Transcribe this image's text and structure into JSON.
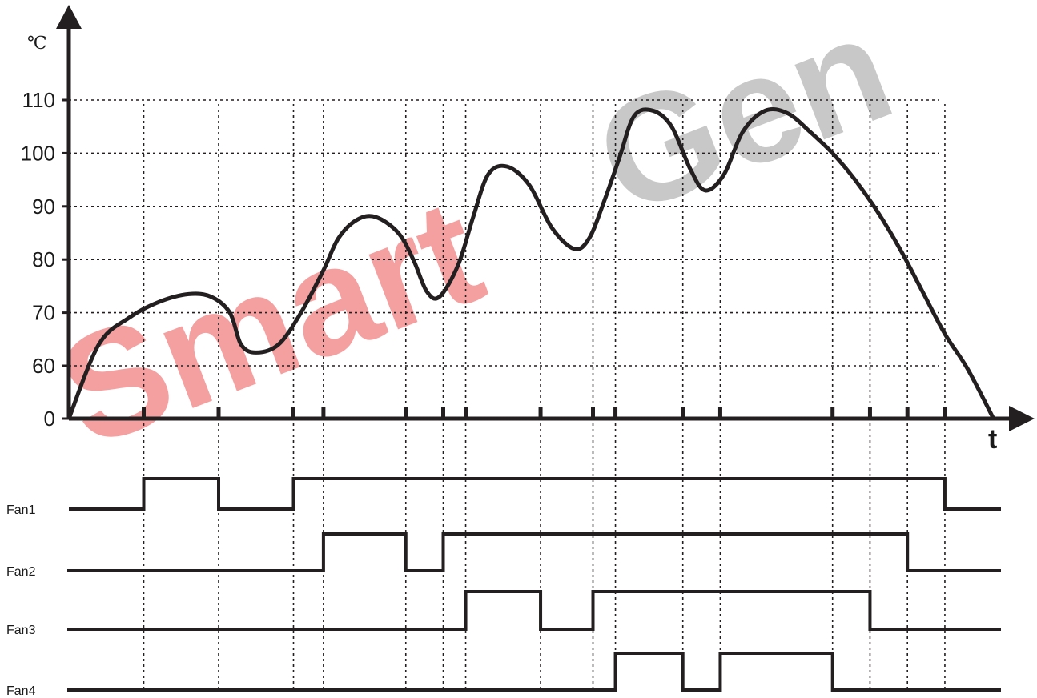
{
  "watermark": {
    "text_red": "Smart",
    "text_grey": "Gen",
    "color_red": "#f5a0a0",
    "color_grey": "#c8c8c8"
  },
  "colors": {
    "curve": "#231f20",
    "axis": "#231f20",
    "grid": "#231f20"
  },
  "chart_data": {
    "type": "line",
    "y_unit": "℃",
    "x_axis_label": "t",
    "y_ticks": [
      "0",
      "60",
      "70",
      "80",
      "90",
      "100",
      "110"
    ],
    "y_tick_values": [
      0,
      60,
      70,
      80,
      90,
      100,
      110
    ],
    "grid": "dashed",
    "x_tick_times": [
      1,
      2,
      3,
      3.4,
      4.5,
      5,
      5.3,
      6.3,
      7,
      7.3,
      8.2,
      8.7,
      10.2,
      10.7,
      11.2,
      11.7
    ],
    "temperature_curve": {
      "t": [
        0,
        0.4,
        0.8,
        1.2,
        1.6,
        1.9,
        2.15,
        2.3,
        2.5,
        2.8,
        3.1,
        3.4,
        3.6,
        3.85,
        4.1,
        4.4,
        4.6,
        4.78,
        4.95,
        5.2,
        5.4,
        5.6,
        5.85,
        6.15,
        6.45,
        6.75,
        6.95,
        7.15,
        7.35,
        7.55,
        7.8,
        8.05,
        8.3,
        8.5,
        8.75,
        9.0,
        9.3,
        9.6,
        9.9,
        10.2,
        10.5,
        10.8,
        11.1,
        11.4,
        11.7,
        12.0,
        12.35
      ],
      "temp": [
        0,
        64,
        69,
        72,
        73.5,
        73,
        70,
        64,
        62.5,
        64,
        70,
        78,
        84,
        87.5,
        88,
        85,
        80,
        74,
        73,
        79,
        88,
        96,
        97.5,
        94,
        86,
        82,
        84,
        91,
        99,
        107,
        108,
        105,
        97,
        93,
        96,
        104,
        108,
        107.5,
        104,
        100,
        95,
        89,
        82,
        74,
        66,
        57,
        0
      ]
    },
    "fans": [
      {
        "name": "Fan1",
        "transitions_t": [
          0,
          1,
          2,
          3,
          11.7,
          12.9
        ],
        "states": [
          0,
          1,
          0,
          1,
          0
        ]
      },
      {
        "name": "Fan2",
        "transitions_t": [
          0,
          3.4,
          4.5,
          5,
          11.2,
          12.9
        ],
        "states": [
          0,
          1,
          0,
          1,
          0
        ]
      },
      {
        "name": "Fan3",
        "transitions_t": [
          0,
          5.3,
          6.3,
          7,
          10.7,
          12.9
        ],
        "states": [
          0,
          1,
          0,
          1,
          0
        ]
      },
      {
        "name": "Fan4",
        "transitions_t": [
          0,
          7.3,
          8.2,
          8.7,
          10.2,
          12.9
        ],
        "states": [
          0,
          1,
          0,
          1,
          0
        ]
      }
    ]
  }
}
